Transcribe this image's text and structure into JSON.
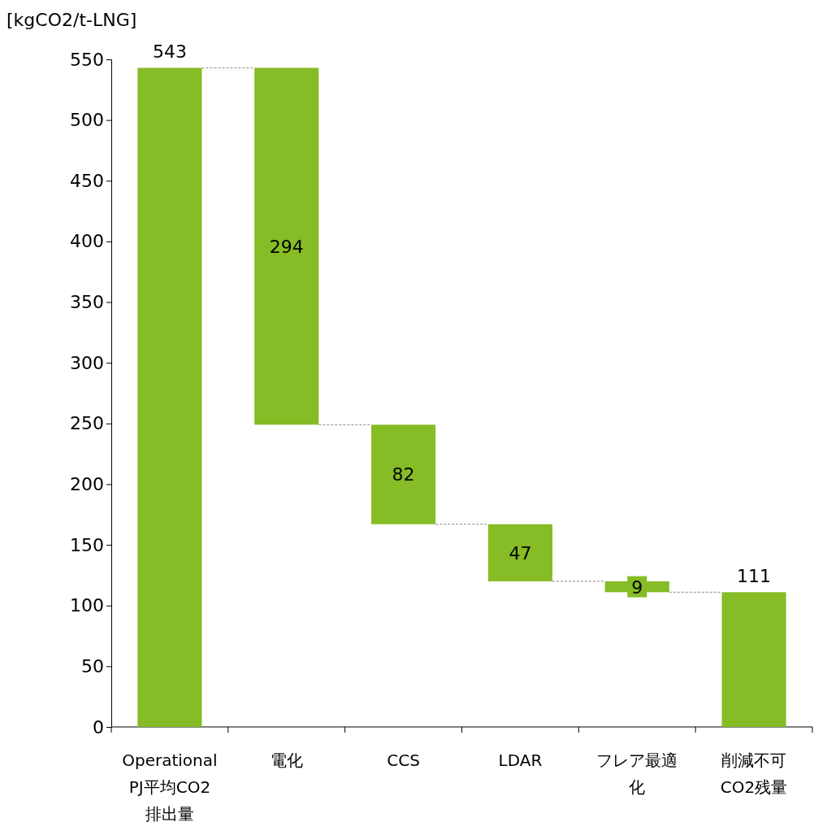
{
  "chart_data": {
    "type": "bar",
    "ylabel": "[kgCO2/t-LNG]",
    "categories": [
      "Operational PJ平均CO2排出量",
      "電化",
      "CCS",
      "LDAR",
      "フレア最適化",
      "削減不可CO2残量"
    ],
    "values": [
      543,
      294,
      82,
      47,
      9,
      111
    ],
    "base": [
      0,
      249,
      167,
      120,
      111,
      0
    ],
    "color": "#86bc25",
    "ylim": [
      0,
      550
    ],
    "yticks": [
      0,
      50,
      100,
      150,
      200,
      250,
      300,
      350,
      400,
      450,
      500,
      550
    ],
    "grid": false,
    "data_labels": true
  }
}
